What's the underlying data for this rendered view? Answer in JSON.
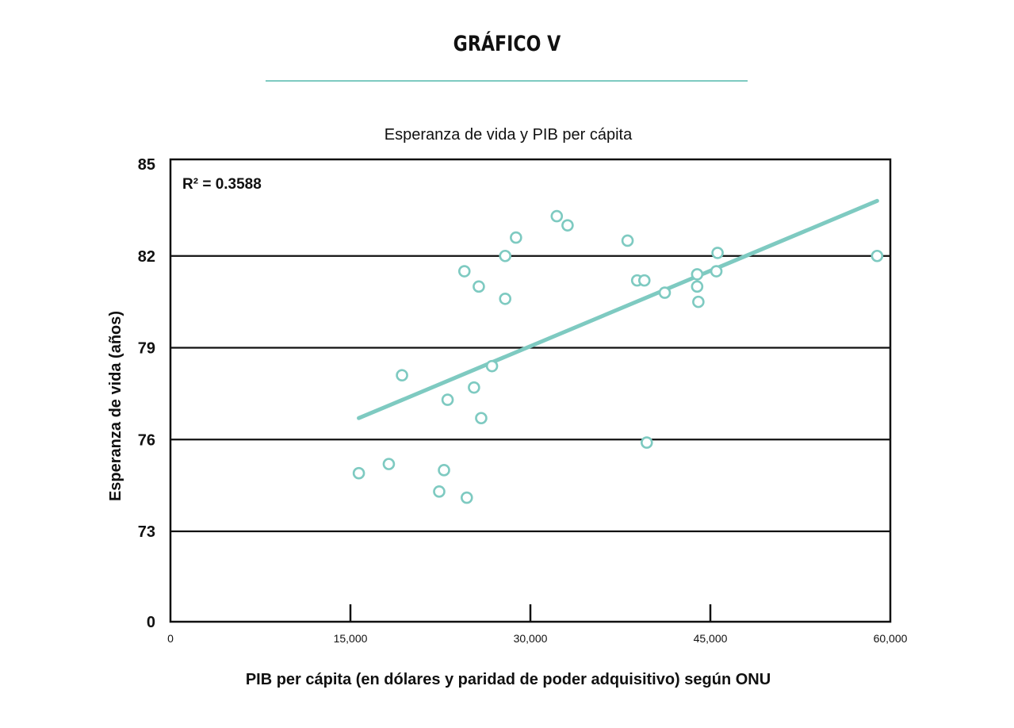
{
  "header": {
    "title": "GRÁFICO V",
    "rule_color": "#7ecac1"
  },
  "chart_data": {
    "type": "scatter",
    "title": "Esperanza de vida y PIB per cápita",
    "xlabel": "PIB per cápita (en dólares y paridad de poder adquisitivo) según ONU",
    "ylabel": "Esperanza de vida (años)",
    "xlim": [
      0,
      60000
    ],
    "x_ticks": [
      0,
      15000,
      30000,
      45000,
      60000
    ],
    "x_tick_labels": [
      "0",
      "15,000",
      "30,000",
      "45,000",
      "60,000"
    ],
    "y_ticks": [
      0,
      73,
      76,
      79,
      82,
      85
    ],
    "y_tick_labels": [
      "0",
      "73",
      "76",
      "79",
      "82",
      "85"
    ],
    "y_axis_note": "axis is broken: gap between 0 and 73",
    "grid": "horizontal lines at 73, 76, 79, 82",
    "annotation": "R² = 0.3588",
    "point_color": "#7ecac1",
    "trendline_color": "#7ecac1",
    "trendline": {
      "x": [
        15700,
        58900
      ],
      "y": [
        76.7,
        83.8
      ]
    },
    "points": [
      {
        "x": 15700,
        "y": 74.9
      },
      {
        "x": 18200,
        "y": 75.2
      },
      {
        "x": 19300,
        "y": 78.1
      },
      {
        "x": 22400,
        "y": 74.3
      },
      {
        "x": 22800,
        "y": 75.0
      },
      {
        "x": 23100,
        "y": 77.3
      },
      {
        "x": 24500,
        "y": 81.5
      },
      {
        "x": 24700,
        "y": 74.1
      },
      {
        "x": 25300,
        "y": 77.7
      },
      {
        "x": 25700,
        "y": 81.0
      },
      {
        "x": 25900,
        "y": 76.7
      },
      {
        "x": 26800,
        "y": 78.4
      },
      {
        "x": 27900,
        "y": 82.0
      },
      {
        "x": 27900,
        "y": 80.6
      },
      {
        "x": 28800,
        "y": 82.6
      },
      {
        "x": 32200,
        "y": 83.3
      },
      {
        "x": 33100,
        "y": 83.0
      },
      {
        "x": 38100,
        "y": 82.5
      },
      {
        "x": 38900,
        "y": 81.2
      },
      {
        "x": 39500,
        "y": 81.2
      },
      {
        "x": 39700,
        "y": 75.9
      },
      {
        "x": 41200,
        "y": 80.8
      },
      {
        "x": 43900,
        "y": 81.4
      },
      {
        "x": 43900,
        "y": 81.0
      },
      {
        "x": 44000,
        "y": 80.5
      },
      {
        "x": 45500,
        "y": 81.5
      },
      {
        "x": 45600,
        "y": 82.1
      },
      {
        "x": 58900,
        "y": 82.0
      }
    ]
  }
}
